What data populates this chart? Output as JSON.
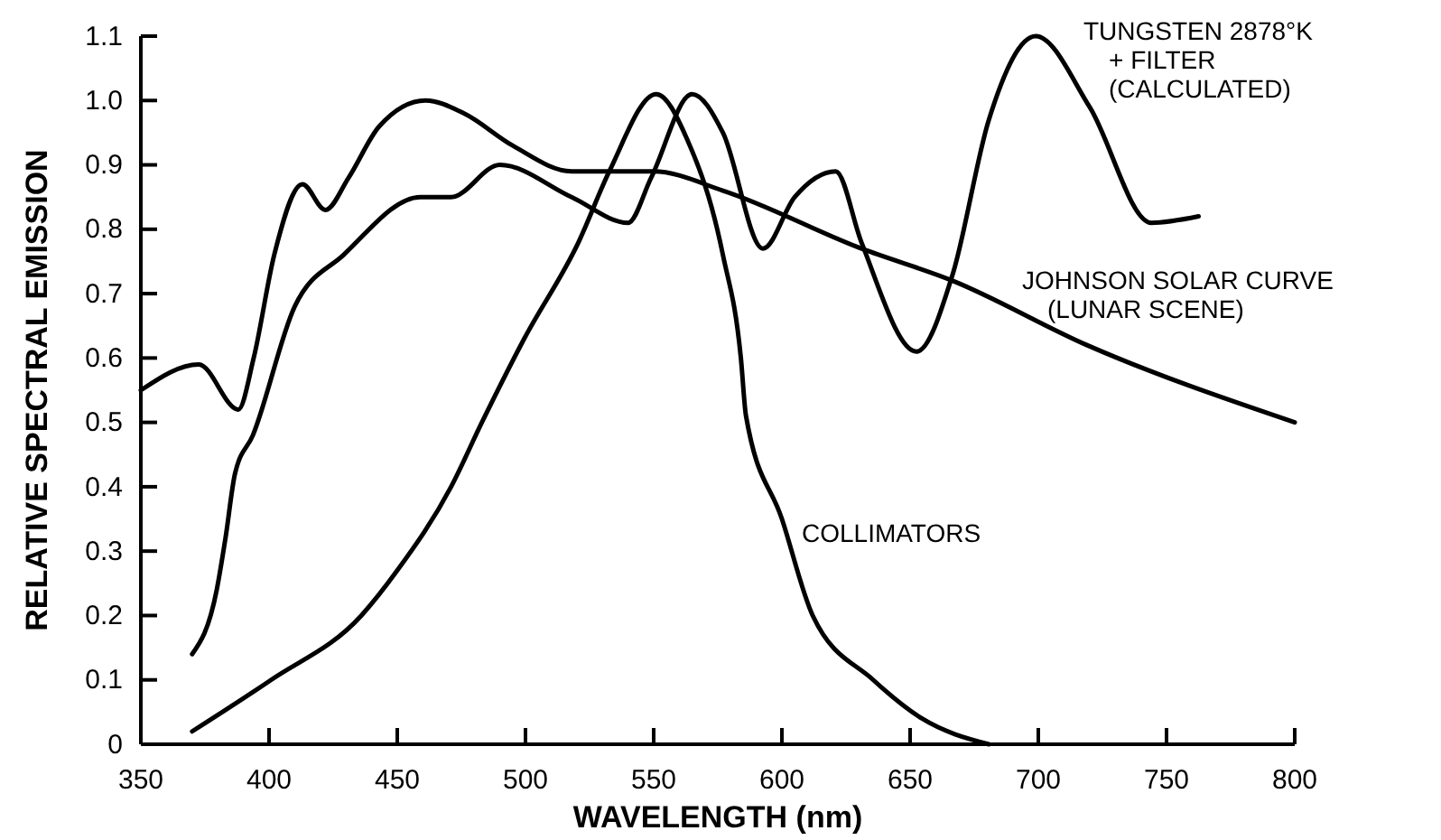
{
  "chart_data": {
    "type": "line",
    "xlabel": "WAVELENGTH (nm)",
    "ylabel": "RELATIVE SPECTRAL EMISSION",
    "xlim": [
      350,
      800
    ],
    "xticks": [
      350,
      400,
      450,
      500,
      550,
      600,
      650,
      700,
      750,
      800
    ],
    "ylim": [
      0,
      1.1
    ],
    "yticks": [
      0,
      0.1,
      0.2,
      0.3,
      0.4,
      0.5,
      0.6,
      0.7,
      0.8,
      0.9,
      {
        "value": 1,
        "label": "1.0"
      },
      1.1
    ],
    "grid": false,
    "legend": false,
    "marker": "none",
    "line_style": "solid",
    "series": [
      {
        "name": "TUNGSTEN 2878°K\n+ FILTER\n(CALCULATED)",
        "color": "#000000",
        "x": [
          370,
          379.6,
          383,
          386.7,
          393.7,
          410,
          429,
          459,
          471,
          490,
          518,
          540,
          549,
          565,
          577,
          592.6,
          605,
          621,
          631,
          652.5,
          666.6,
          680.7,
          699,
          720,
          744,
          762.5
        ],
        "values": [
          0.14,
          0.24,
          0.32,
          0.42,
          0.48,
          0.68,
          0.76,
          0.85,
          0.85,
          0.9,
          0.85,
          0.81,
          0.88,
          1.01,
          0.95,
          0.77,
          0.85,
          0.89,
          0.78,
          0.61,
          0.73,
          0.97,
          1.1,
          0.99,
          0.81,
          0.82
        ]
      },
      {
        "name": "JOHNSON SOLAR CURVE\n(LUNAR SCENE)",
        "color": "#000000",
        "x": [
          350,
          372.6,
          388,
          394,
          402,
          413,
          422,
          431,
          443,
          461,
          476,
          495,
          518,
          540,
          550,
          577,
          631,
          666.6,
          719,
          800
        ],
        "values": [
          0.55,
          0.59,
          0.52,
          0.6,
          0.76,
          0.87,
          0.83,
          0.88,
          0.96,
          1.0,
          0.98,
          0.93,
          0.89,
          0.89,
          0.89,
          0.86,
          0.77,
          0.72,
          0.62,
          0.5
        ]
      },
      {
        "name": "COLLIMATORS",
        "color": "#000000",
        "x": [
          370,
          400.8,
          436,
          450,
          471,
          483,
          499.5,
          520.7,
          532.7,
          551,
          563,
          577,
          584,
          586,
          600,
          612,
          635.6,
          654.6,
          680.7
        ],
        "values": [
          0.02,
          0.1,
          0.2,
          0.27,
          0.4,
          0.5,
          0.63,
          0.78,
          0.89,
          1.01,
          0.94,
          0.76,
          0.6,
          0.51,
          0.35,
          0.2,
          0.1,
          0.04,
          0
        ]
      }
    ]
  }
}
